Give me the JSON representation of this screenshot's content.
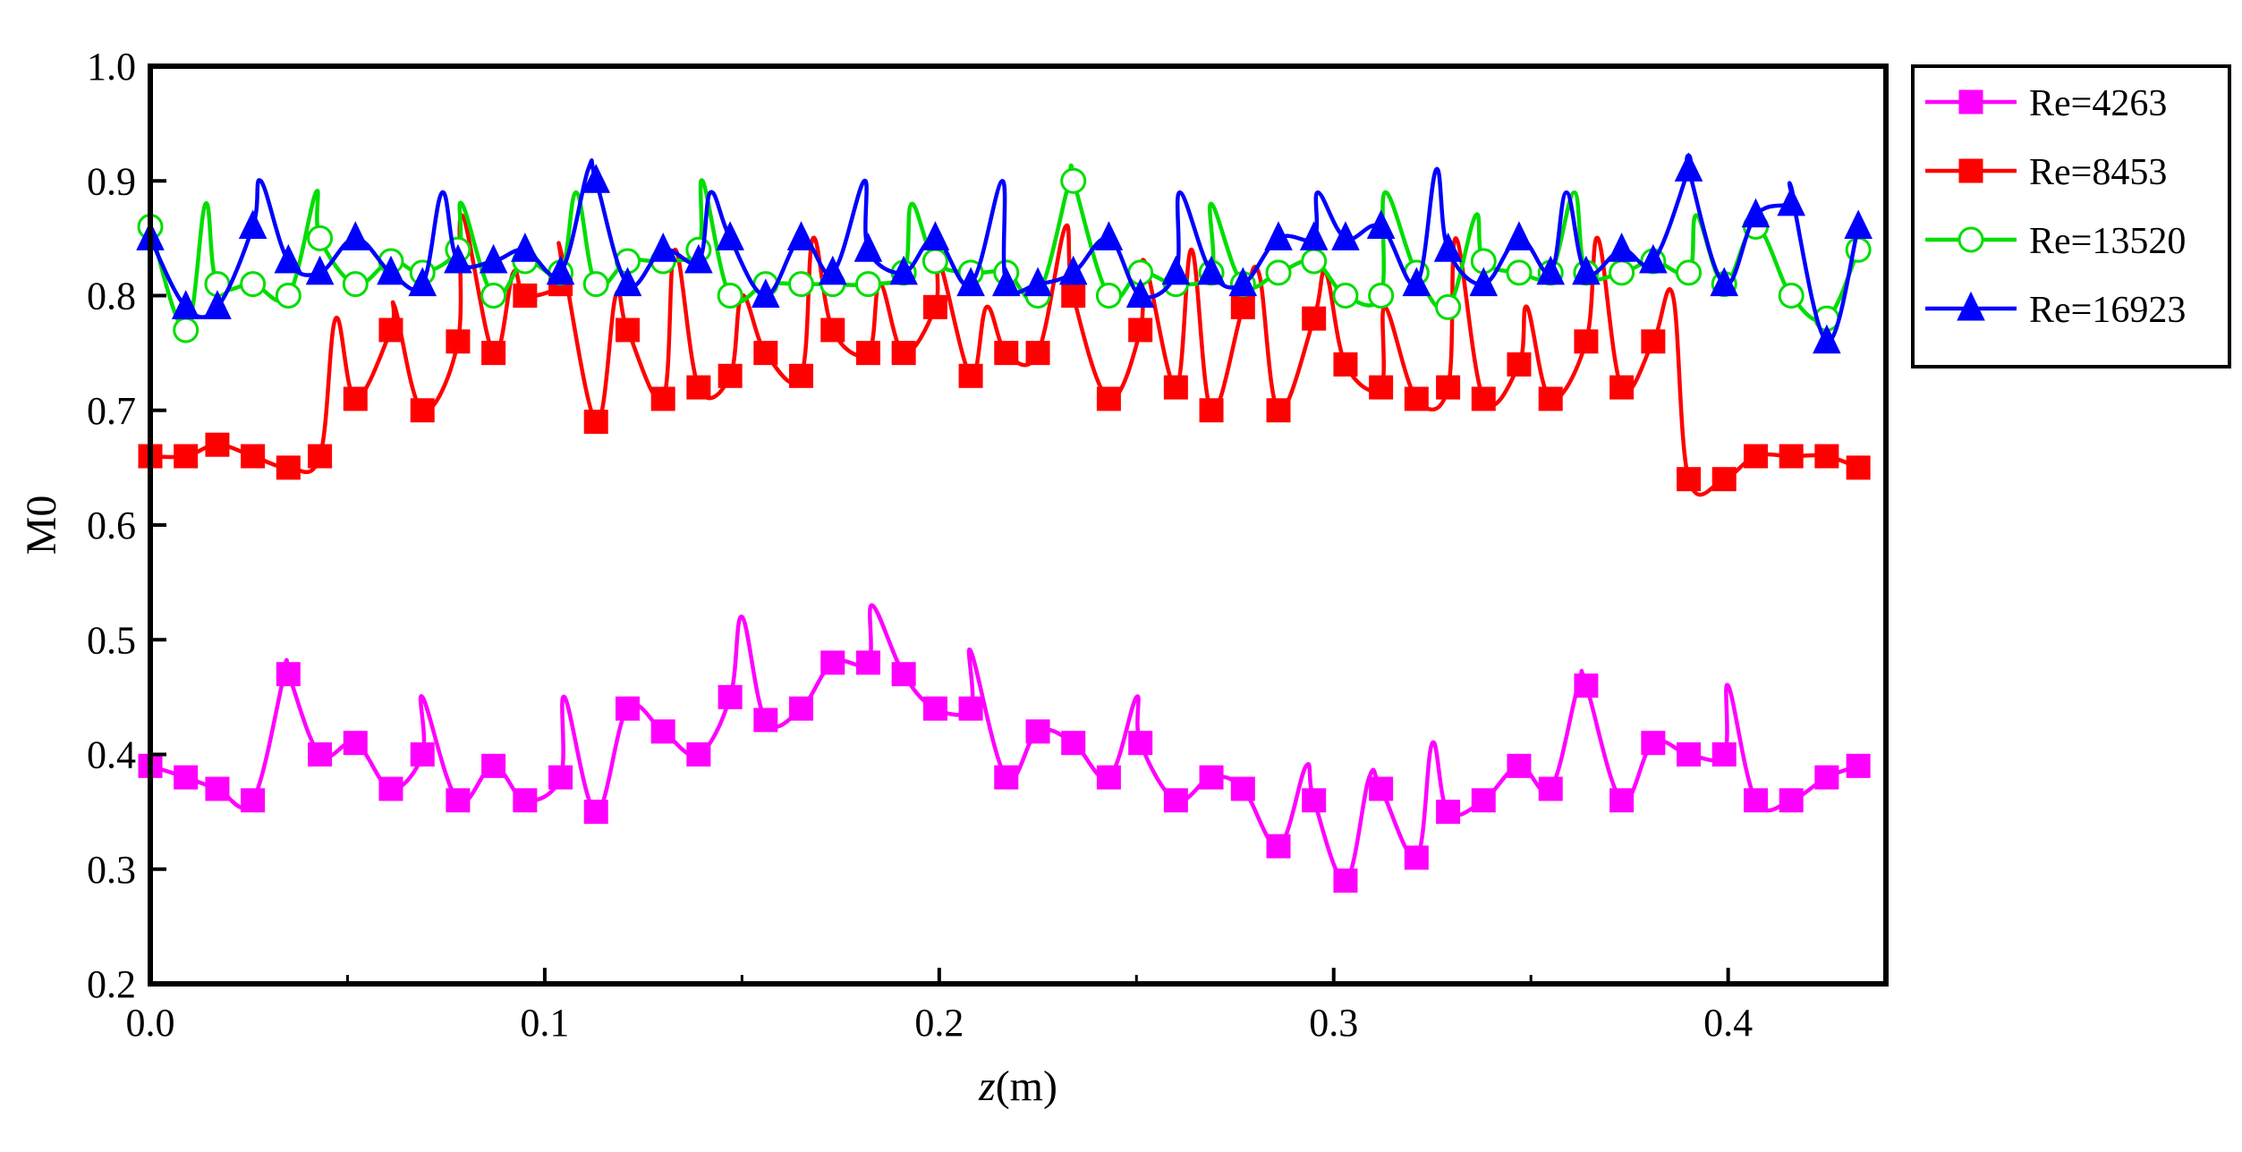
{
  "chart_data": {
    "type": "line",
    "title": "",
    "xlabel_italic": "z",
    "xlabel_unit": "(m)",
    "ylabel": "M0",
    "xlim": [
      0,
      0.44
    ],
    "ylim": [
      0.2,
      1.0
    ],
    "xticks": [
      0.0,
      0.1,
      0.2,
      0.3,
      0.4
    ],
    "xtick_labels": [
      "0.0",
      "0.1",
      "0.2",
      "0.3",
      "0.4"
    ],
    "yticks": [
      0.2,
      0.3,
      0.4,
      0.5,
      0.6,
      0.7,
      0.8,
      0.9,
      1.0
    ],
    "ytick_labels": [
      "0.2",
      "0.3",
      "0.4",
      "0.5",
      "0.6",
      "0.7",
      "0.8",
      "0.9",
      "1.0"
    ],
    "grid": false,
    "legend_position": "top-right-outside",
    "series": [
      {
        "name": "Re=4263",
        "color": "#ff00ff",
        "marker": "filled-square",
        "x": [
          0.0,
          0.009,
          0.017,
          0.026,
          0.035,
          0.043,
          0.052,
          0.061,
          0.069,
          0.078,
          0.087,
          0.095,
          0.104,
          0.113,
          0.121,
          0.13,
          0.139,
          0.147,
          0.156,
          0.165,
          0.173,
          0.182,
          0.191,
          0.199,
          0.208,
          0.217,
          0.225,
          0.234,
          0.243,
          0.251,
          0.26,
          0.269,
          0.277,
          0.286,
          0.295,
          0.303,
          0.312,
          0.321,
          0.329,
          0.338,
          0.347,
          0.355,
          0.364,
          0.373,
          0.381,
          0.39,
          0.399,
          0.407,
          0.416,
          0.425,
          0.433
        ],
        "values": [
          0.39,
          0.38,
          0.37,
          0.36,
          0.47,
          0.4,
          0.41,
          0.37,
          0.4,
          0.36,
          0.39,
          0.36,
          0.38,
          0.35,
          0.44,
          0.42,
          0.4,
          0.45,
          0.43,
          0.44,
          0.48,
          0.48,
          0.47,
          0.44,
          0.44,
          0.38,
          0.42,
          0.41,
          0.38,
          0.41,
          0.36,
          0.38,
          0.37,
          0.32,
          0.36,
          0.29,
          0.37,
          0.31,
          0.35,
          0.36,
          0.39,
          0.37,
          0.46,
          0.36,
          0.41,
          0.4,
          0.4,
          0.36,
          0.36,
          0.38,
          0.39
        ],
        "spikes_x": [
          0.034,
          0.069,
          0.105,
          0.15,
          0.183,
          0.208,
          0.25,
          0.293,
          0.309,
          0.325,
          0.362,
          0.4
        ],
        "spikes_y": [
          0.47,
          0.45,
          0.45,
          0.52,
          0.53,
          0.49,
          0.45,
          0.39,
          0.38,
          0.41,
          0.46,
          0.46
        ]
      },
      {
        "name": "Re=8453",
        "color": "#ff0000",
        "marker": "filled-square",
        "x": [
          0.0,
          0.009,
          0.017,
          0.026,
          0.035,
          0.043,
          0.052,
          0.061,
          0.069,
          0.078,
          0.087,
          0.095,
          0.104,
          0.113,
          0.121,
          0.13,
          0.139,
          0.147,
          0.156,
          0.165,
          0.173,
          0.182,
          0.191,
          0.199,
          0.208,
          0.217,
          0.225,
          0.234,
          0.243,
          0.251,
          0.26,
          0.269,
          0.277,
          0.286,
          0.295,
          0.303,
          0.312,
          0.321,
          0.329,
          0.338,
          0.347,
          0.355,
          0.364,
          0.373,
          0.381,
          0.39,
          0.399,
          0.407,
          0.416,
          0.425,
          0.433
        ],
        "values": [
          0.66,
          0.66,
          0.67,
          0.66,
          0.65,
          0.66,
          0.71,
          0.77,
          0.7,
          0.76,
          0.75,
          0.8,
          0.81,
          0.69,
          0.77,
          0.71,
          0.72,
          0.73,
          0.75,
          0.73,
          0.77,
          0.75,
          0.75,
          0.79,
          0.73,
          0.75,
          0.75,
          0.8,
          0.71,
          0.77,
          0.72,
          0.7,
          0.79,
          0.7,
          0.78,
          0.74,
          0.72,
          0.71,
          0.72,
          0.71,
          0.74,
          0.71,
          0.76,
          0.72,
          0.76,
          0.64,
          0.64,
          0.66,
          0.66,
          0.66,
          0.65
        ],
        "spikes_x": [
          0.047,
          0.062,
          0.079,
          0.092,
          0.104,
          0.118,
          0.133,
          0.15,
          0.168,
          0.185,
          0.2,
          0.212,
          0.232,
          0.252,
          0.264,
          0.281,
          0.298,
          0.313,
          0.331,
          0.349,
          0.367,
          0.386
        ],
        "spikes_y": [
          0.78,
          0.79,
          0.87,
          0.82,
          0.84,
          0.8,
          0.84,
          0.8,
          0.85,
          0.81,
          0.83,
          0.79,
          0.86,
          0.83,
          0.84,
          0.82,
          0.82,
          0.79,
          0.85,
          0.79,
          0.85,
          0.8
        ]
      },
      {
        "name": "Re=13520",
        "color": "#00dd00",
        "marker": "open-circle",
        "x": [
          0.0,
          0.009,
          0.017,
          0.026,
          0.035,
          0.043,
          0.052,
          0.061,
          0.069,
          0.078,
          0.087,
          0.095,
          0.104,
          0.113,
          0.121,
          0.13,
          0.139,
          0.147,
          0.156,
          0.165,
          0.173,
          0.182,
          0.191,
          0.199,
          0.208,
          0.217,
          0.225,
          0.234,
          0.243,
          0.251,
          0.26,
          0.269,
          0.277,
          0.286,
          0.295,
          0.303,
          0.312,
          0.321,
          0.329,
          0.338,
          0.347,
          0.355,
          0.364,
          0.373,
          0.381,
          0.39,
          0.399,
          0.407,
          0.416,
          0.425,
          0.433
        ],
        "values": [
          0.86,
          0.77,
          0.81,
          0.81,
          0.8,
          0.85,
          0.81,
          0.83,
          0.82,
          0.84,
          0.8,
          0.83,
          0.82,
          0.81,
          0.83,
          0.83,
          0.84,
          0.8,
          0.81,
          0.81,
          0.81,
          0.81,
          0.82,
          0.83,
          0.82,
          0.82,
          0.8,
          0.9,
          0.8,
          0.82,
          0.81,
          0.82,
          0.81,
          0.82,
          0.83,
          0.8,
          0.8,
          0.82,
          0.79,
          0.83,
          0.82,
          0.82,
          0.82,
          0.82,
          0.83,
          0.82,
          0.81,
          0.86,
          0.8,
          0.78,
          0.84
        ],
        "spikes_x": [
          0.014,
          0.042,
          0.079,
          0.108,
          0.14,
          0.193,
          0.233,
          0.269,
          0.313,
          0.336,
          0.361,
          0.392
        ],
        "spikes_y": [
          0.88,
          0.89,
          0.88,
          0.89,
          0.9,
          0.88,
          0.9,
          0.88,
          0.89,
          0.87,
          0.89,
          0.87
        ]
      },
      {
        "name": "Re=16923",
        "color": "#0000ff",
        "marker": "filled-triangle",
        "x": [
          0.0,
          0.009,
          0.017,
          0.026,
          0.035,
          0.043,
          0.052,
          0.061,
          0.069,
          0.078,
          0.087,
          0.095,
          0.104,
          0.113,
          0.121,
          0.13,
          0.139,
          0.147,
          0.156,
          0.165,
          0.173,
          0.182,
          0.191,
          0.199,
          0.208,
          0.217,
          0.225,
          0.234,
          0.243,
          0.251,
          0.26,
          0.269,
          0.277,
          0.286,
          0.295,
          0.303,
          0.312,
          0.321,
          0.329,
          0.338,
          0.347,
          0.355,
          0.364,
          0.373,
          0.381,
          0.39,
          0.399,
          0.407,
          0.416,
          0.425,
          0.433
        ],
        "values": [
          0.85,
          0.79,
          0.79,
          0.86,
          0.83,
          0.82,
          0.85,
          0.82,
          0.81,
          0.83,
          0.83,
          0.84,
          0.82,
          0.9,
          0.81,
          0.84,
          0.83,
          0.85,
          0.8,
          0.85,
          0.82,
          0.84,
          0.82,
          0.85,
          0.81,
          0.81,
          0.81,
          0.82,
          0.85,
          0.8,
          0.82,
          0.82,
          0.81,
          0.85,
          0.85,
          0.85,
          0.86,
          0.81,
          0.84,
          0.81,
          0.85,
          0.82,
          0.82,
          0.84,
          0.83,
          0.91,
          0.81,
          0.87,
          0.88,
          0.76,
          0.86
        ],
        "spikes_x": [
          0.028,
          0.074,
          0.111,
          0.142,
          0.181,
          0.216,
          0.261,
          0.296,
          0.326,
          0.359,
          0.39,
          0.416
        ],
        "spikes_y": [
          0.9,
          0.89,
          0.91,
          0.89,
          0.9,
          0.9,
          0.89,
          0.89,
          0.91,
          0.89,
          0.91,
          0.89
        ]
      }
    ]
  }
}
